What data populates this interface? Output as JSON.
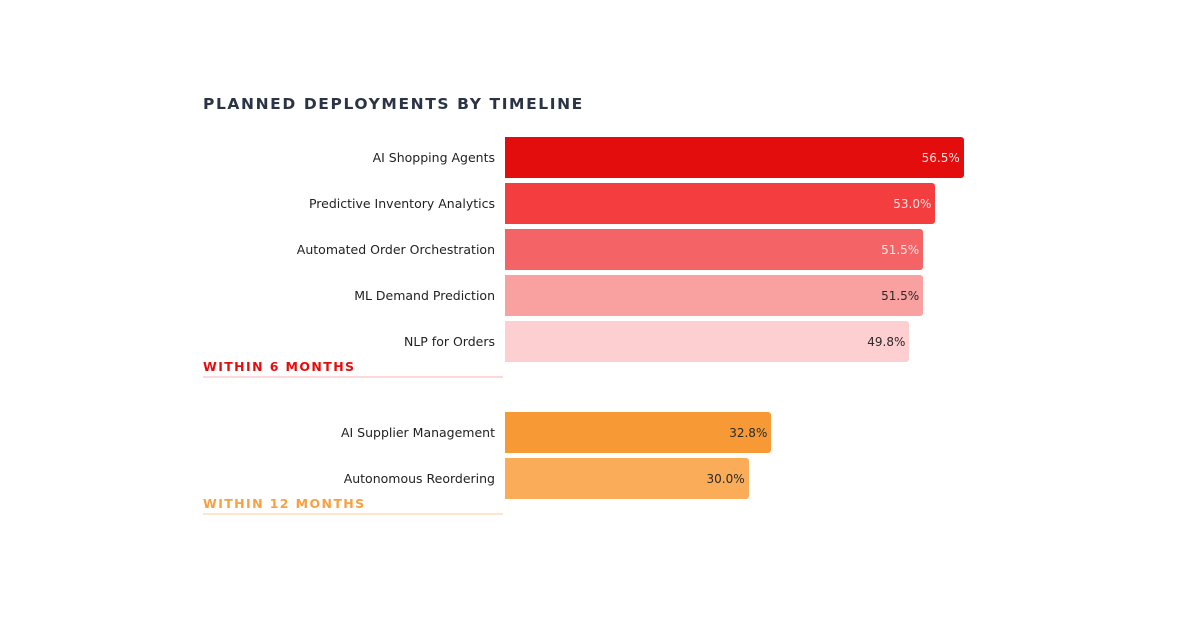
{
  "chart_data": {
    "type": "bar",
    "orientation": "horizontal",
    "title": "PLANNED DEPLOYMENTS BY TIMELINE",
    "groups": [
      {
        "name": "WITHIN 6 MONTHS",
        "color": "#e30d0d",
        "items": [
          {
            "label": "AI Shopping Agents",
            "value": 56.5,
            "value_label": "56.5%",
            "color": "#e30d0d",
            "text_color": "#ffe0e0"
          },
          {
            "label": "Predictive Inventory Analytics",
            "value": 53.0,
            "value_label": "53.0%",
            "color": "#f43d3f",
            "text_color": "#ffe0e0"
          },
          {
            "label": "Automated Order Orchestration",
            "value": 51.5,
            "value_label": "51.5%",
            "color": "#f46467",
            "text_color": "#ffe3e3"
          },
          {
            "label": "ML Demand Prediction",
            "value": 51.5,
            "value_label": "51.5%",
            "color": "#f9a0a0",
            "text_color": "#2a2a2a"
          },
          {
            "label": "NLP for Orders",
            "value": 49.8,
            "value_label": "49.8%",
            "color": "#fdcfd0",
            "text_color": "#2a2a2a"
          }
        ]
      },
      {
        "name": "WITHIN 12 MONTHS",
        "color": "#f9a040",
        "items": [
          {
            "label": "AI Supplier Management",
            "value": 32.8,
            "value_label": "32.8%",
            "color": "#f79a35",
            "text_color": "#2a2a2a"
          },
          {
            "label": "Autonomous Reordering",
            "value": 30.0,
            "value_label": "30.0%",
            "color": "#fbac58",
            "text_color": "#2a2a2a"
          }
        ]
      }
    ]
  }
}
